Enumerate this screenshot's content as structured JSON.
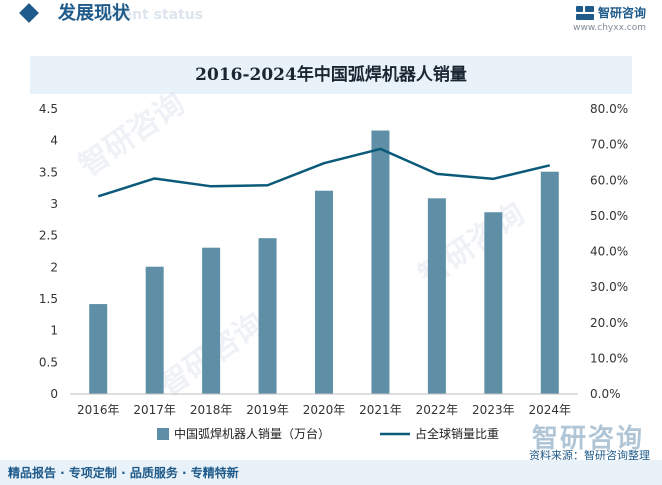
{
  "header": {
    "section_title": "发展现状",
    "section_subtitle_en": "ment status",
    "brand_name": "智研咨询",
    "brand_url": "www.chyxx.com"
  },
  "watermark": "智研咨询",
  "footer": {
    "tags": "精品报告 · 专项定制 · 品质服务 · 专精特新",
    "source": "资料来源：智研咨询整理"
  },
  "colors": {
    "bar": "#5e8fa6",
    "line": "#0b5a7a",
    "accent": "#1e5a8a",
    "title_bg": "#e9f2f8"
  },
  "chart_data": {
    "type": "bar",
    "title": "2016-2024年中国弧焊机器人销量",
    "categories": [
      "2016年",
      "2017年",
      "2018年",
      "2019年",
      "2020年",
      "2021年",
      "2022年",
      "2023年",
      "2024年"
    ],
    "series": [
      {
        "name": "中国弧焊机器人销量（万台）",
        "type": "bar",
        "axis": "left",
        "values": [
          1.42,
          2.01,
          2.31,
          2.46,
          3.21,
          4.16,
          3.09,
          2.87,
          3.51
        ]
      },
      {
        "name": "占全球销量比重",
        "type": "line",
        "axis": "right",
        "values": [
          55.5,
          60.5,
          58.3,
          58.6,
          64.8,
          68.8,
          61.8,
          60.4,
          64.2
        ]
      }
    ],
    "y_left": {
      "min": 0,
      "max": 4.5,
      "step": 0.5,
      "ticks": [
        "0",
        "0.5",
        "1",
        "1.5",
        "2",
        "2.5",
        "3",
        "3.5",
        "4",
        "4.5"
      ]
    },
    "y_right": {
      "min": 0,
      "max": 80,
      "step": 10,
      "ticks": [
        "0.0%",
        "10.0%",
        "20.0%",
        "30.0%",
        "40.0%",
        "50.0%",
        "60.0%",
        "70.0%",
        "80.0%"
      ]
    },
    "grid": false,
    "legend_position": "bottom"
  }
}
